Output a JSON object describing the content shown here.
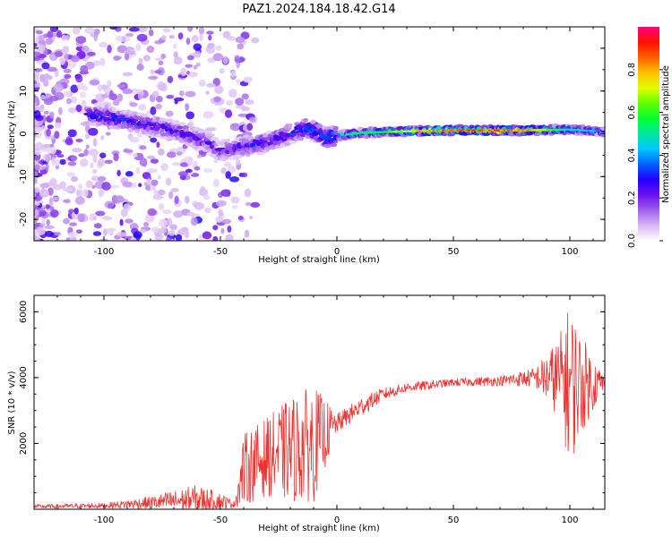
{
  "figure_title": "PAZ1.2024.184.18.42.G14",
  "colorbar": {
    "label": "Normalized spectral amplitude",
    "ticks": [
      "0.0",
      "0.2",
      "0.4",
      "0.6",
      "0.8"
    ],
    "tick_values": [
      0.0,
      0.2,
      0.4,
      0.6,
      0.8
    ],
    "range": [
      0,
      1
    ],
    "colormap": [
      "#ffffff",
      "#d8b8f4",
      "#a060ec",
      "#6a10f0",
      "#2200ff",
      "#0060ff",
      "#00c8ff",
      "#00e8a0",
      "#00ff30",
      "#60ff00",
      "#e0ff00",
      "#ffc000",
      "#ff6000",
      "#ff1000",
      "#ff0080"
    ]
  },
  "chart_data": [
    {
      "type": "heatmap",
      "title": "",
      "xlabel": "Height of straight line (km)",
      "ylabel": "Frequency (Hz)",
      "xlim": [
        -130,
        115
      ],
      "ylim": [
        -25,
        25
      ],
      "xticks": [
        -100,
        -50,
        0,
        50,
        100
      ],
      "yticks": [
        -20,
        -10,
        0,
        10,
        20
      ],
      "grid": false,
      "ridge_center_hz": [
        {
          "x": -105,
          "y": 4.5
        },
        {
          "x": -95,
          "y": 3.5
        },
        {
          "x": -85,
          "y": 2.5
        },
        {
          "x": -75,
          "y": 1.5
        },
        {
          "x": -65,
          "y": 0
        },
        {
          "x": -55,
          "y": -2
        },
        {
          "x": -50,
          "y": -4
        },
        {
          "x": -45,
          "y": -3.5
        },
        {
          "x": -40,
          "y": -3
        },
        {
          "x": -30,
          "y": -2
        },
        {
          "x": -20,
          "y": 0
        },
        {
          "x": -12,
          "y": 1.5
        },
        {
          "x": -5,
          "y": -1
        },
        {
          "x": 0,
          "y": -0.5
        },
        {
          "x": 10,
          "y": 0.2
        },
        {
          "x": 30,
          "y": 0.6
        },
        {
          "x": 50,
          "y": 0.8
        },
        {
          "x": 80,
          "y": 0.8
        },
        {
          "x": 100,
          "y": 1.0
        },
        {
          "x": 115,
          "y": 0.5
        }
      ],
      "ridge_peak_amplitude": [
        {
          "x": -105,
          "y": 0.35
        },
        {
          "x": -80,
          "y": 0.3
        },
        {
          "x": -50,
          "y": 0.25
        },
        {
          "x": -20,
          "y": 0.35
        },
        {
          "x": 0,
          "y": 0.5
        },
        {
          "x": 20,
          "y": 0.6
        },
        {
          "x": 40,
          "y": 0.85
        },
        {
          "x": 60,
          "y": 0.9
        },
        {
          "x": 80,
          "y": 0.85
        },
        {
          "x": 100,
          "y": 0.5
        },
        {
          "x": 115,
          "y": 0.4
        }
      ]
    },
    {
      "type": "line",
      "title": "",
      "xlabel": "Height of straight line (km)",
      "ylabel": "SNR (10 * v/v)",
      "xlim": [
        -130,
        115
      ],
      "ylim": [
        0,
        6500
      ],
      "xticks": [
        -100,
        -50,
        0,
        50,
        100
      ],
      "yticks": [
        2000,
        4000,
        6000
      ],
      "grid": false,
      "color": "#ee3333",
      "series": [
        {
          "values_envelope": [
            {
              "x": -130,
              "y": 80,
              "amp": 60
            },
            {
              "x": -100,
              "y": 110,
              "amp": 80
            },
            {
              "x": -80,
              "y": 200,
              "amp": 200
            },
            {
              "x": -60,
              "y": 300,
              "amp": 450
            },
            {
              "x": -50,
              "y": 250,
              "amp": 250
            },
            {
              "x": -44,
              "y": 150,
              "amp": 100
            },
            {
              "x": -40,
              "y": 1200,
              "amp": 1100
            },
            {
              "x": -30,
              "y": 1600,
              "amp": 1200
            },
            {
              "x": -20,
              "y": 1800,
              "amp": 1600
            },
            {
              "x": -10,
              "y": 2000,
              "amp": 1800
            },
            {
              "x": 0,
              "y": 2600,
              "amp": 300
            },
            {
              "x": 10,
              "y": 3100,
              "amp": 300
            },
            {
              "x": 20,
              "y": 3500,
              "amp": 200
            },
            {
              "x": 30,
              "y": 3700,
              "amp": 150
            },
            {
              "x": 50,
              "y": 3850,
              "amp": 120
            },
            {
              "x": 70,
              "y": 3900,
              "amp": 150
            },
            {
              "x": 85,
              "y": 4000,
              "amp": 300
            },
            {
              "x": 95,
              "y": 4000,
              "amp": 1200
            },
            {
              "x": 100,
              "y": 3800,
              "amp": 2500
            },
            {
              "x": 105,
              "y": 3800,
              "amp": 1500
            },
            {
              "x": 115,
              "y": 3850,
              "amp": 200
            }
          ]
        }
      ]
    }
  ]
}
